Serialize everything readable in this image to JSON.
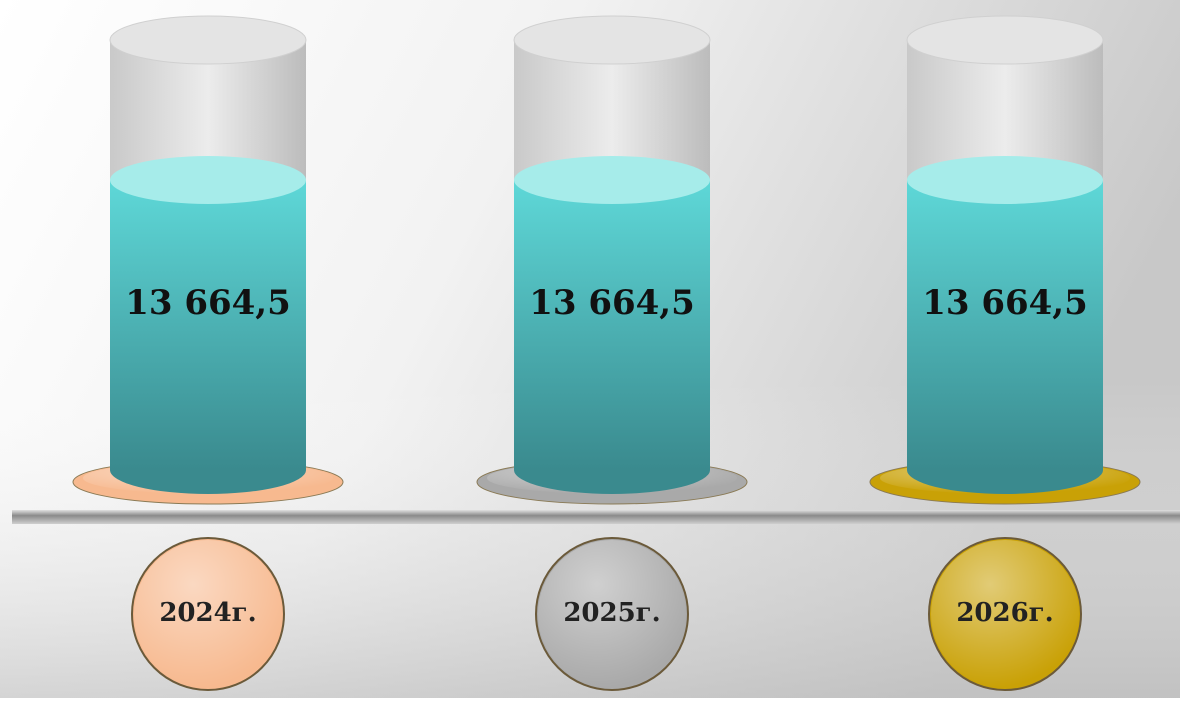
{
  "chart_data": {
    "type": "bar",
    "categories": [
      "2024г.",
      "2025г.",
      "2026г."
    ],
    "values": [
      13664.5,
      13664.5,
      13664.5
    ],
    "value_labels": [
      "13 664,5",
      "13 664,5",
      "13 664,5"
    ],
    "colors": [
      "#f7b98f",
      "#a9a9a9",
      "#c9a106"
    ]
  }
}
